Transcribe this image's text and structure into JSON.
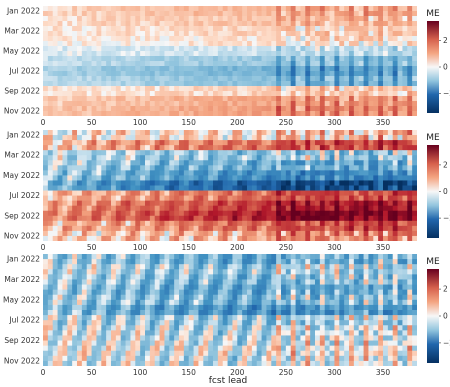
{
  "chart_data": [
    {
      "type": "heatmap",
      "x": {
        "min": 0,
        "max": 385,
        "ticks": [
          0,
          50,
          100,
          150,
          200,
          250,
          300,
          350
        ]
      },
      "y_ticks": [
        "Jan 2022",
        "Mar 2022",
        "May 2022",
        "Jul 2022",
        "Sep 2022",
        "Nov 2022"
      ],
      "colorbar": {
        "title": "ME",
        "range": [
          -3.5,
          3.5
        ],
        "ticks": [
          2,
          0,
          -2
        ]
      },
      "pattern": "mild",
      "month_bias": [
        0.4,
        0.3,
        0.2,
        0.1,
        -0.2,
        -0.5,
        -0.8,
        -0.6,
        0.2,
        0.5,
        0.6,
        0.5
      ]
    },
    {
      "type": "heatmap",
      "x": {
        "min": 0,
        "max": 385,
        "ticks": [
          0,
          50,
          100,
          150,
          200,
          250,
          300,
          350
        ]
      },
      "y_ticks": [
        "Jan 2022",
        "Mar 2022",
        "May 2022",
        "Jul 2022",
        "Sep 2022",
        "Nov 2022"
      ],
      "colorbar": {
        "title": "ME",
        "range": [
          -3.5,
          3.5
        ],
        "ticks": [
          2,
          0,
          -2
        ]
      },
      "pattern": "strong",
      "month_bias": [
        0.2,
        1.0,
        -0.6,
        -0.9,
        -1.3,
        -2.2,
        1.0,
        1.6,
        2.0,
        1.0,
        0.5,
        -0.4
      ]
    },
    {
      "type": "heatmap",
      "x": {
        "min": 0,
        "max": 385,
        "ticks": [
          0,
          50,
          100,
          150,
          200,
          250,
          300,
          350
        ]
      },
      "y_ticks": [
        "Jan 2022",
        "Mar 2022",
        "May 2022",
        "Jul 2022",
        "Sep 2022",
        "Nov 2022"
      ],
      "colorbar": {
        "title": "ME",
        "range": [
          -3.5,
          3.5
        ],
        "ticks": [
          2,
          0,
          -2
        ]
      },
      "pattern": "diurnal",
      "month_bias": [
        -1.0,
        -0.6,
        -0.8,
        -1.1,
        -0.9,
        -1.4,
        -0.6,
        -0.4,
        -0.3,
        -0.2,
        -0.3,
        -0.5
      ]
    }
  ],
  "xlabel": "fcst lead"
}
